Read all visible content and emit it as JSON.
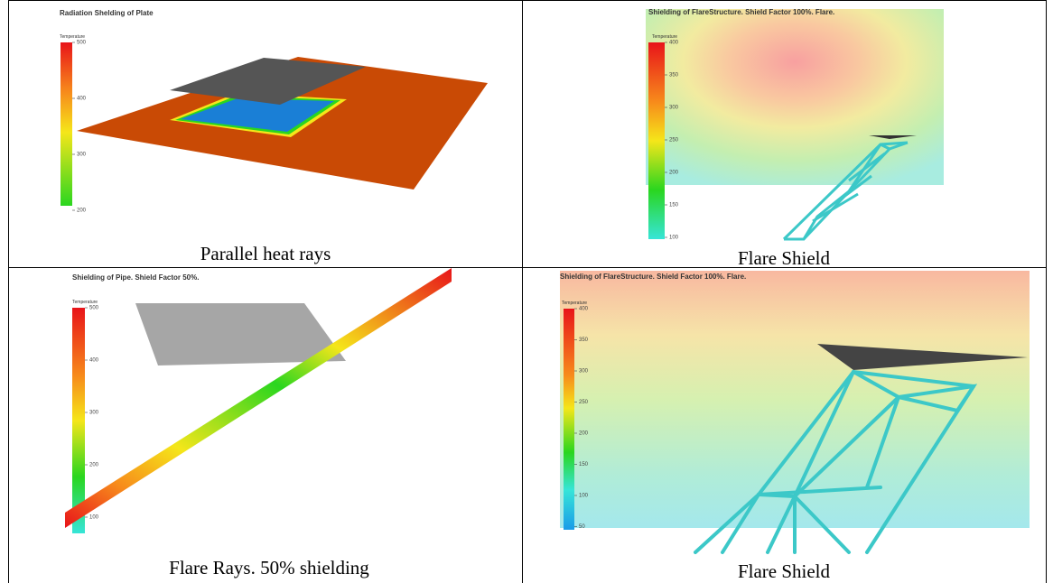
{
  "cells": [
    {
      "title": "Radiation Shelding of Plate",
      "legend": "Temperature",
      "ticks": [
        500,
        400,
        300,
        200
      ],
      "caption": "Parallel heat rays"
    },
    {
      "title": "Shielding of FlareStructure. Shield Factor 100%. Flare.",
      "legend": "Temperature",
      "ticks": [
        400,
        350,
        300,
        250,
        200,
        150,
        100
      ],
      "caption": "Flare Shield"
    },
    {
      "title": "Shielding of Pipe. Shield Factor 50%.",
      "legend": "Temperature",
      "ticks": [
        500,
        400,
        300,
        200,
        100
      ],
      "caption": "Flare Rays. 50% shielding"
    },
    {
      "title": "Shielding of FlareStructure. Shield Factor 100%. Flare.",
      "legend": "Temperature",
      "ticks": [
        400,
        350,
        300,
        250,
        200,
        150,
        100,
        50
      ],
      "caption": "Flare Shield"
    }
  ]
}
